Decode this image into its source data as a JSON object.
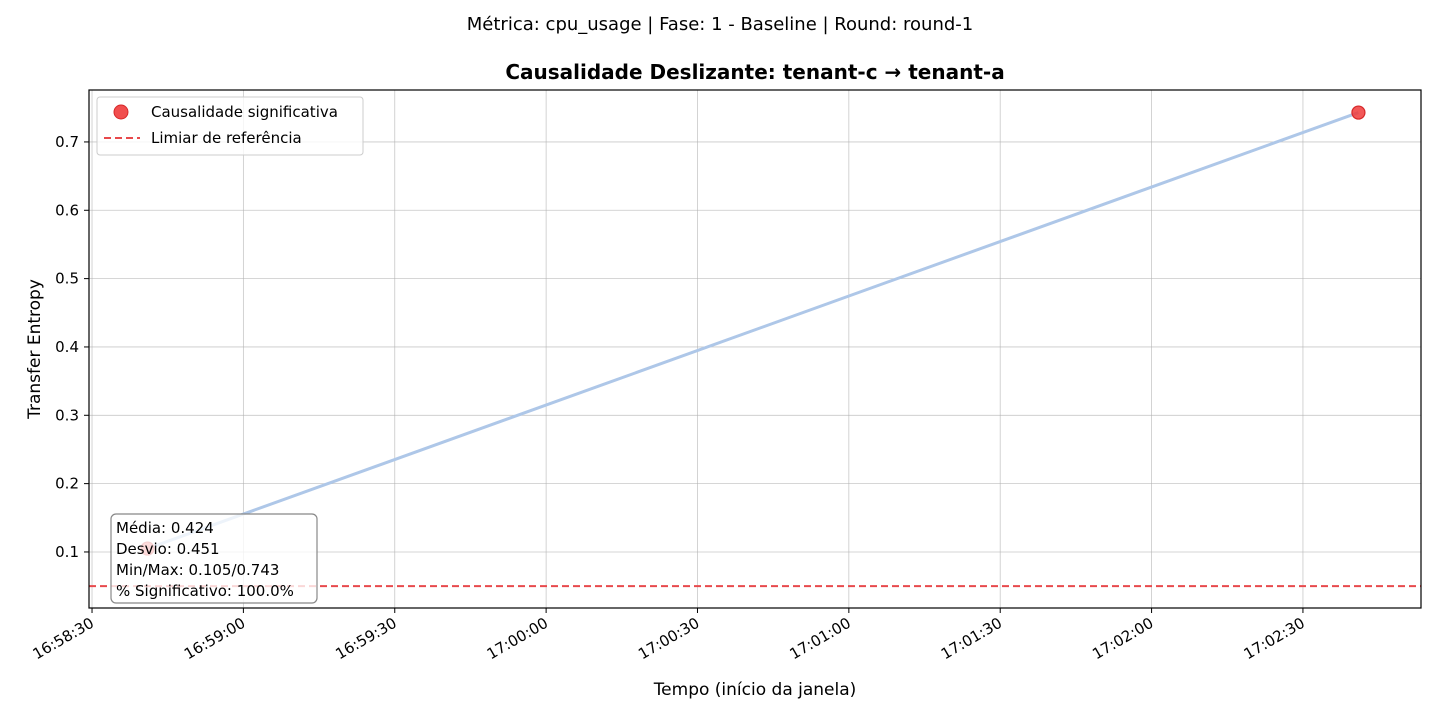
{
  "chart_data": {
    "type": "line",
    "suptitle": "Métrica: cpu_usage | Fase: 1 - Baseline | Round: round-1",
    "title": "Causalidade Deslizante: tenant-c → tenant-a",
    "xlabel": "Tempo (início da janela)",
    "ylabel": "Transfer Entropy",
    "x_ticks": [
      "16:58:30",
      "16:59:00",
      "16:59:30",
      "17:00:00",
      "17:00:30",
      "17:01:00",
      "17:01:30",
      "17:02:00",
      "17:02:30"
    ],
    "x_tick_seconds": [
      0,
      30,
      60,
      90,
      120,
      150,
      180,
      210,
      240
    ],
    "xlim_seconds": [
      -0.6,
      263.4
    ],
    "y_ticks": [
      0.1,
      0.2,
      0.3,
      0.4,
      0.5,
      0.6,
      0.7
    ],
    "ylim": [
      0.018,
      0.776
    ],
    "grid": true,
    "series": [
      {
        "name": "",
        "color": "#aec7e8",
        "points": [
          {
            "time": "16:58:41",
            "value": 0.105,
            "significant": true
          },
          {
            "time": "17:02:41",
            "value": 0.743,
            "significant": true
          }
        ]
      }
    ],
    "threshold": {
      "value": 0.05,
      "color": "#e8494c"
    },
    "significant_color": "#f03b3b",
    "legend": {
      "placement": "top-left",
      "entries": [
        {
          "label": "Causalidade significativa",
          "kind": "marker"
        },
        {
          "label": "Limiar de referência",
          "kind": "dashed"
        }
      ]
    },
    "stats_box": {
      "lines": [
        "Média: 0.424",
        "Desvio: 0.451",
        "Min/Max: 0.105/0.743",
        "% Significativo: 100.0%"
      ]
    }
  }
}
